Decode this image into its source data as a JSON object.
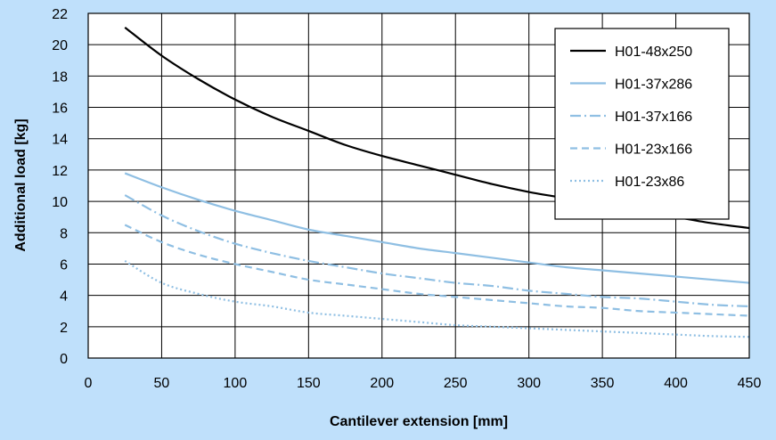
{
  "chart_data": {
    "type": "line",
    "xlabel": "Cantilever extension [mm]",
    "ylabel": "Additional load [kg]",
    "xlim": [
      0,
      450
    ],
    "ylim": [
      0,
      22
    ],
    "x_ticks": [
      "0",
      "50",
      "100",
      "150",
      "200",
      "250",
      "300",
      "350",
      "400",
      "450"
    ],
    "y_ticks": [
      "0",
      "2",
      "4",
      "6",
      "8",
      "10",
      "12",
      "14",
      "16",
      "18",
      "20",
      "22"
    ],
    "grid": true,
    "legend_position": "top-right",
    "background_color": "#bfe0fb",
    "plot_color": "#ffffff",
    "x": [
      25,
      50,
      75,
      100,
      125,
      150,
      175,
      200,
      225,
      250,
      275,
      300,
      325,
      350,
      375,
      400,
      425,
      450
    ],
    "series": [
      {
        "name": "H01-48x250",
        "color": "#000000",
        "dash": "solid",
        "values": [
          21.1,
          19.3,
          17.8,
          16.5,
          15.4,
          14.5,
          13.6,
          12.9,
          12.3,
          11.7,
          11.1,
          10.6,
          10.2,
          9.8,
          9.4,
          9.0,
          8.6,
          8.3
        ]
      },
      {
        "name": "H01-37x286",
        "color": "#8fbfe3",
        "dash": "solid",
        "values": [
          11.8,
          10.9,
          10.1,
          9.4,
          8.8,
          8.2,
          7.8,
          7.4,
          7.0,
          6.7,
          6.4,
          6.1,
          5.8,
          5.6,
          5.4,
          5.2,
          5.0,
          4.8
        ]
      },
      {
        "name": "H01-37x166",
        "color": "#8fbfe3",
        "dash": "dashdot",
        "values": [
          10.4,
          9.1,
          8.1,
          7.3,
          6.7,
          6.2,
          5.8,
          5.4,
          5.1,
          4.8,
          4.6,
          4.3,
          4.1,
          3.9,
          3.8,
          3.6,
          3.4,
          3.3
        ]
      },
      {
        "name": "H01-23x166",
        "color": "#8fbfe3",
        "dash": "dash",
        "values": [
          8.5,
          7.4,
          6.6,
          6.0,
          5.5,
          5.0,
          4.7,
          4.4,
          4.1,
          3.9,
          3.7,
          3.5,
          3.3,
          3.2,
          3.0,
          2.9,
          2.8,
          2.7
        ]
      },
      {
        "name": "H01-23x86",
        "color": "#8fbfe3",
        "dash": "dot",
        "values": [
          6.2,
          4.8,
          4.1,
          3.6,
          3.3,
          2.9,
          2.7,
          2.5,
          2.3,
          2.1,
          2.0,
          1.9,
          1.8,
          1.7,
          1.6,
          1.5,
          1.4,
          1.35
        ]
      }
    ]
  }
}
